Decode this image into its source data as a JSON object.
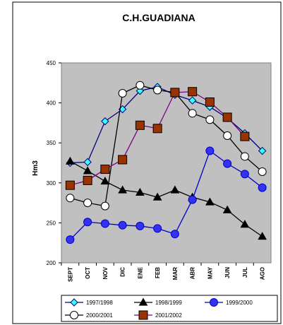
{
  "chart_data": {
    "type": "line",
    "title": "C.H.GUADIANA",
    "ylabel": "Hm3",
    "xlabel": "",
    "categories": [
      "SEPT",
      "OCT",
      "NOV",
      "DIC",
      "ENE",
      "FEB",
      "MAR",
      "ABR",
      "MAY",
      "JUN",
      "JUL",
      "AGO"
    ],
    "ylim": [
      200,
      450
    ],
    "yticks": [
      200,
      250,
      300,
      350,
      400,
      450
    ],
    "grid": false,
    "legend_position": "bottom",
    "background_color": "#c0c0c0",
    "series": [
      {
        "name": "1997/1998",
        "color": "#000080",
        "marker": "diamond",
        "marker_fill": "#33ffff",
        "values": [
          325,
          326,
          377,
          392,
          415,
          420,
          410,
          403,
          395,
          381,
          362,
          340
        ]
      },
      {
        "name": "1998/1999",
        "color": "#000000",
        "marker": "triangle",
        "marker_fill": "#000000",
        "values": [
          327,
          315,
          302,
          291,
          288,
          282,
          291,
          282,
          276,
          266,
          248,
          233
        ]
      },
      {
        "name": "1999/2000",
        "color": "#0000cc",
        "marker": "circle",
        "marker_fill": "#3333ee",
        "values": [
          229,
          251,
          249,
          247,
          246,
          243,
          236,
          279,
          340,
          324,
          311,
          294
        ]
      },
      {
        "name": "2000/2001",
        "color": "#000000",
        "marker": "circle",
        "marker_fill": "#ffffff",
        "values": [
          281,
          275,
          271,
          412,
          422,
          416,
          413,
          387,
          379,
          359,
          333,
          314
        ]
      },
      {
        "name": "2001/2002",
        "color": "#800080",
        "marker": "square",
        "marker_fill": "#993300",
        "values": [
          297,
          303,
          317,
          329,
          372,
          368,
          413,
          414,
          401,
          382,
          358,
          null
        ]
      }
    ]
  }
}
